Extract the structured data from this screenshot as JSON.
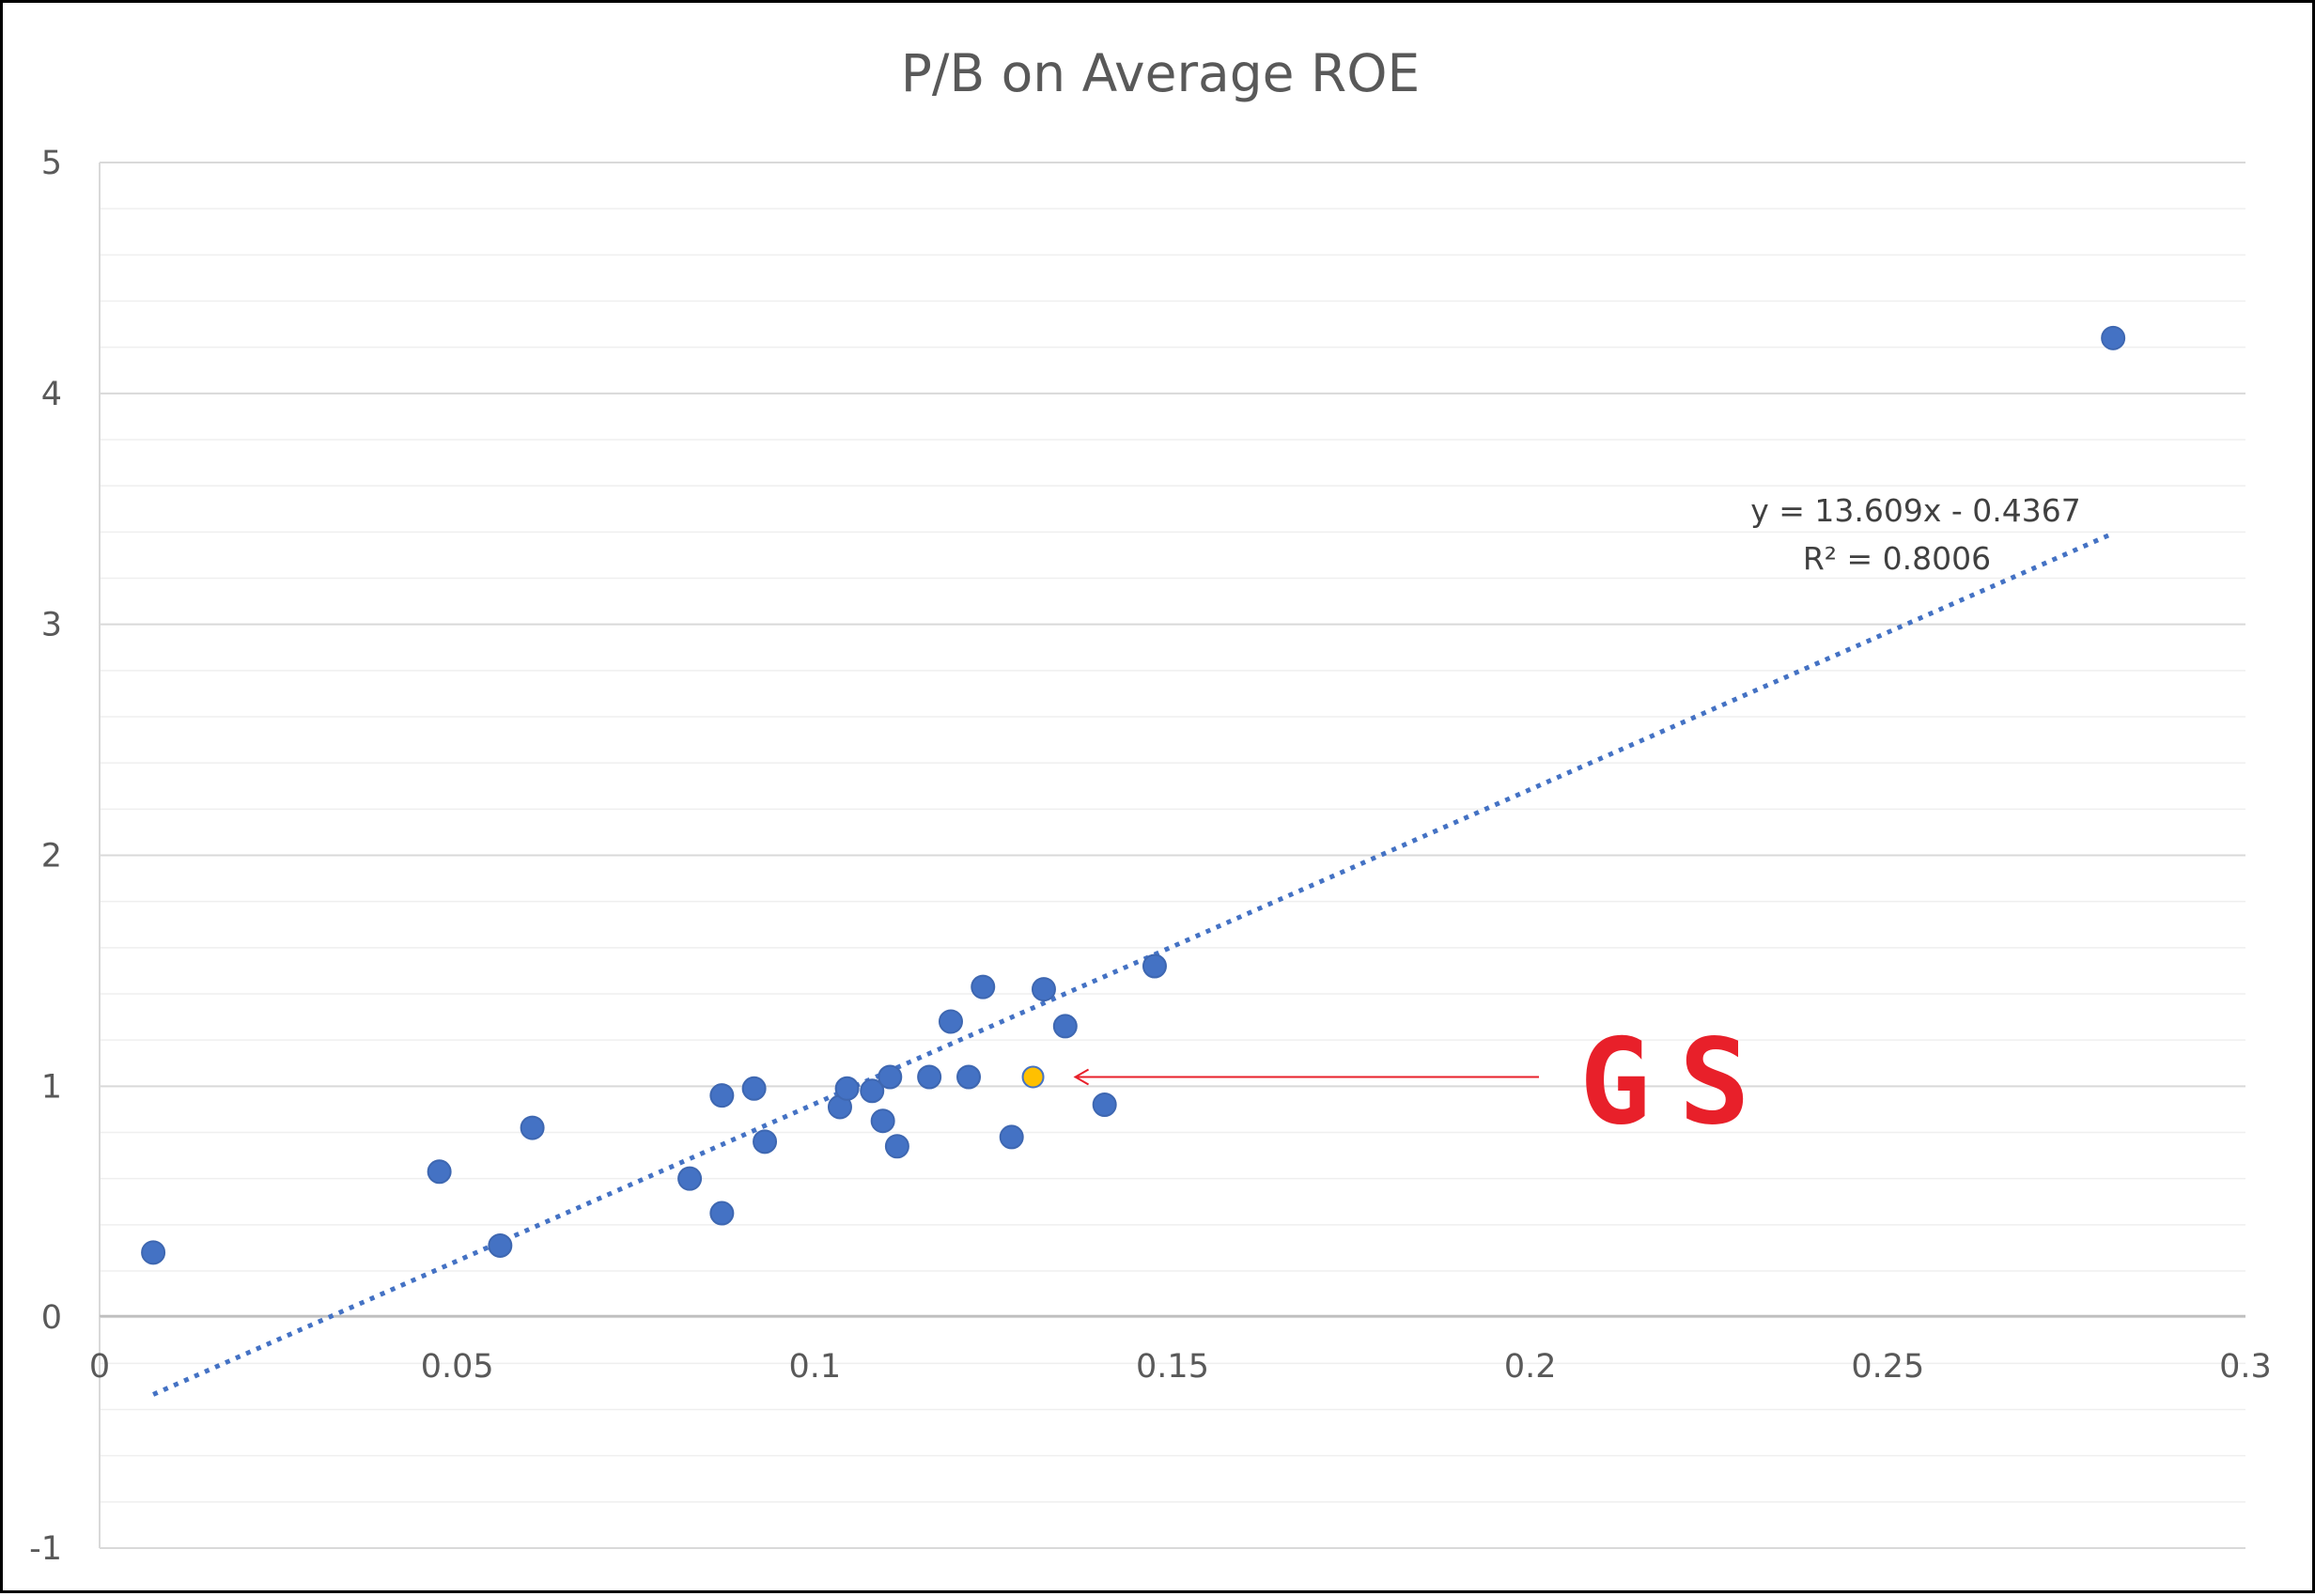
{
  "chart_data": {
    "type": "scatter",
    "title": "P/B on Average ROE",
    "xlabel": "",
    "ylabel": "",
    "xlim": [
      0,
      0.3
    ],
    "ylim": [
      -1,
      5
    ],
    "x_ticks": [
      "0",
      "0.05",
      "0.1",
      "0.15",
      "0.2",
      "0.25",
      "0.3"
    ],
    "y_ticks": [
      "-1",
      "0",
      "1",
      "2",
      "3",
      "4",
      "5"
    ],
    "grid": "horizontal",
    "legend": "none",
    "series": [
      {
        "color": "#4472C4",
        "points": [
          [
            0.0075,
            0.28
          ],
          [
            0.0475,
            0.63
          ],
          [
            0.056,
            0.31
          ],
          [
            0.0605,
            0.82
          ],
          [
            0.0825,
            0.6
          ],
          [
            0.087,
            0.96
          ],
          [
            0.087,
            0.45
          ],
          [
            0.0915,
            0.99
          ],
          [
            0.093,
            0.76
          ],
          [
            0.1035,
            0.91
          ],
          [
            0.1045,
            0.99
          ],
          [
            0.108,
            0.98
          ],
          [
            0.1095,
            0.85
          ],
          [
            0.1105,
            1.04
          ],
          [
            0.1115,
            0.74
          ],
          [
            0.116,
            1.04
          ],
          [
            0.119,
            1.28
          ],
          [
            0.1215,
            1.04
          ],
          [
            0.1235,
            1.43
          ],
          [
            0.1275,
            0.78
          ],
          [
            0.132,
            1.42
          ],
          [
            0.135,
            1.26
          ],
          [
            0.1405,
            0.92
          ],
          [
            0.1475,
            1.52
          ],
          [
            0.2815,
            4.24
          ]
        ]
      },
      {
        "color": "#FFC000",
        "points": [
          [
            0.1305,
            1.04
          ]
        ]
      }
    ],
    "trendline": {
      "type": "linear",
      "slope": 13.609,
      "intercept": -0.4367,
      "x_range": [
        0.0075,
        0.2815
      ],
      "color": "#4472C4",
      "style": "dotted",
      "equation_label": "y = 13.609x - 0.4367",
      "r2_label": "R² = 0.8006"
    },
    "annotation": {
      "text": "GS",
      "color": "#E8202A",
      "target_point": [
        0.1305,
        1.04
      ]
    }
  }
}
